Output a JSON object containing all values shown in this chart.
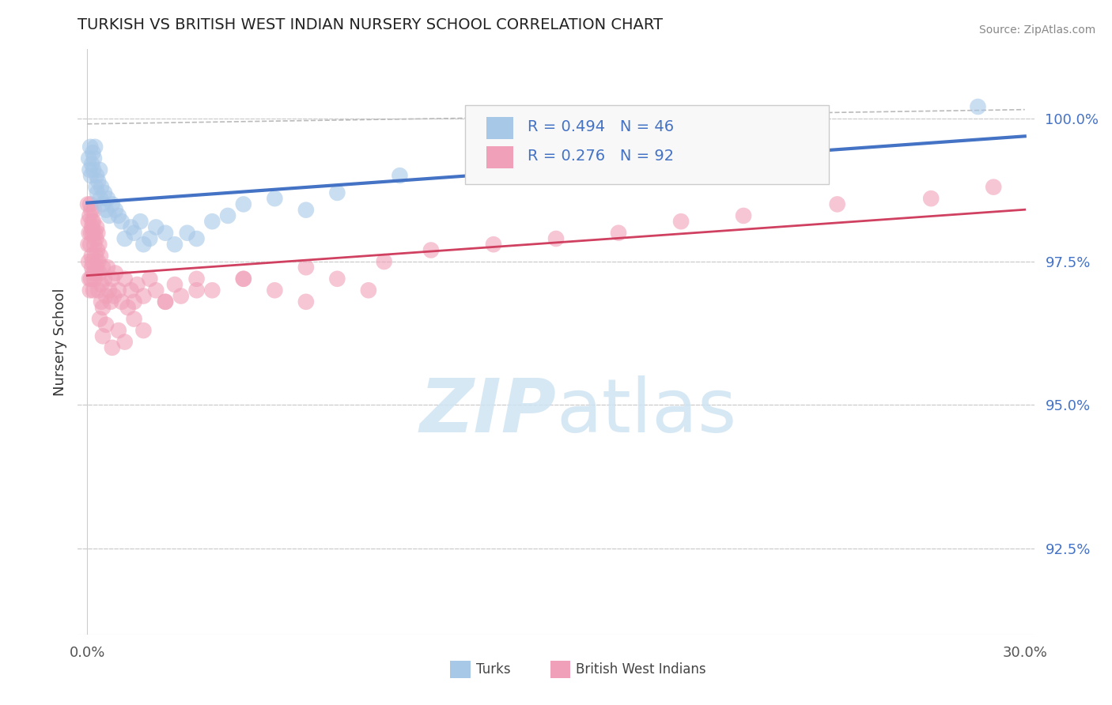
{
  "title": "TURKISH VS BRITISH WEST INDIAN NURSERY SCHOOL CORRELATION CHART",
  "source": "Source: ZipAtlas.com",
  "ylabel": "Nursery School",
  "xlim": [
    -0.3,
    30.3
  ],
  "ylim": [
    91.0,
    101.2
  ],
  "yticks": [
    92.5,
    95.0,
    97.5,
    100.0
  ],
  "ytick_labels": [
    "92.5%",
    "95.0%",
    "97.5%",
    "100.0%"
  ],
  "xtick_labels_left": "0.0%",
  "xtick_labels_right": "30.0%",
  "turks_R": 0.494,
  "turks_N": 46,
  "bwi_R": 0.276,
  "bwi_N": 92,
  "turks_color": "#a8c8e8",
  "bwi_color": "#f0a0b8",
  "turks_line_color": "#4472c4",
  "bwi_line_color": "#d04060",
  "background_color": "#ffffff",
  "grid_color": "#cccccc",
  "title_color": "#222222",
  "watermark_color": "#d0e4f4",
  "legend_text_color": "#4472c4",
  "source_color": "#888888",
  "ytick_color": "#4472c4",
  "turks_x": [
    0.05,
    0.08,
    0.1,
    0.12,
    0.15,
    0.18,
    0.2,
    0.22,
    0.25,
    0.28,
    0.3,
    0.32,
    0.35,
    0.4,
    0.42,
    0.45,
    0.5,
    0.55,
    0.6,
    0.65,
    0.7,
    0.8,
    0.9,
    1.0,
    1.1,
    1.2,
    1.4,
    1.5,
    1.7,
    1.8,
    2.0,
    2.2,
    2.5,
    2.8,
    3.2,
    3.5,
    4.0,
    4.5,
    5.0,
    6.0,
    7.0,
    8.0,
    10.0,
    13.0,
    18.0,
    28.5
  ],
  "turks_y": [
    99.3,
    99.1,
    99.5,
    99.0,
    99.2,
    99.4,
    99.1,
    99.3,
    99.5,
    98.8,
    99.0,
    98.7,
    98.9,
    99.1,
    98.6,
    98.8,
    98.5,
    98.7,
    98.4,
    98.6,
    98.3,
    98.5,
    98.4,
    98.3,
    98.2,
    97.9,
    98.1,
    98.0,
    98.2,
    97.8,
    97.9,
    98.1,
    98.0,
    97.8,
    98.0,
    97.9,
    98.2,
    98.3,
    98.5,
    98.6,
    98.4,
    98.7,
    99.0,
    99.2,
    99.5,
    100.2
  ],
  "bwi_x": [
    0.02,
    0.03,
    0.04,
    0.05,
    0.06,
    0.07,
    0.08,
    0.09,
    0.1,
    0.1,
    0.12,
    0.12,
    0.13,
    0.14,
    0.15,
    0.15,
    0.16,
    0.17,
    0.18,
    0.18,
    0.2,
    0.2,
    0.22,
    0.22,
    0.23,
    0.25,
    0.25,
    0.27,
    0.28,
    0.3,
    0.3,
    0.32,
    0.33,
    0.35,
    0.35,
    0.38,
    0.4,
    0.42,
    0.45,
    0.45,
    0.5,
    0.5,
    0.55,
    0.6,
    0.65,
    0.7,
    0.75,
    0.8,
    0.85,
    0.9,
    1.0,
    1.1,
    1.2,
    1.3,
    1.4,
    1.5,
    1.6,
    1.8,
    2.0,
    2.2,
    2.5,
    2.8,
    3.0,
    3.5,
    4.0,
    5.0,
    6.0,
    7.0,
    8.0,
    9.0,
    0.4,
    0.5,
    0.6,
    0.8,
    1.0,
    1.2,
    1.5,
    1.8,
    2.5,
    3.5,
    5.0,
    7.0,
    9.5,
    11.0,
    13.0,
    15.0,
    17.0,
    19.0,
    21.0,
    24.0,
    27.0,
    29.0
  ],
  "bwi_y": [
    98.5,
    97.8,
    98.2,
    97.5,
    98.0,
    97.2,
    98.3,
    97.0,
    98.5,
    97.8,
    98.0,
    97.2,
    98.4,
    97.6,
    98.1,
    97.4,
    98.2,
    97.5,
    98.0,
    97.3,
    98.2,
    97.0,
    98.4,
    97.2,
    97.8,
    98.0,
    97.3,
    97.6,
    97.9,
    98.1,
    97.4,
    97.7,
    98.0,
    97.5,
    97.0,
    97.8,
    97.3,
    97.6,
    97.1,
    96.8,
    97.4,
    96.7,
    97.2,
    96.9,
    97.4,
    97.0,
    96.8,
    97.2,
    96.9,
    97.3,
    97.0,
    96.8,
    97.2,
    96.7,
    97.0,
    96.8,
    97.1,
    96.9,
    97.2,
    97.0,
    96.8,
    97.1,
    96.9,
    97.2,
    97.0,
    97.2,
    97.0,
    96.8,
    97.2,
    97.0,
    96.5,
    96.2,
    96.4,
    96.0,
    96.3,
    96.1,
    96.5,
    96.3,
    96.8,
    97.0,
    97.2,
    97.4,
    97.5,
    97.7,
    97.8,
    97.9,
    98.0,
    98.2,
    98.3,
    98.5,
    98.6,
    98.8
  ]
}
